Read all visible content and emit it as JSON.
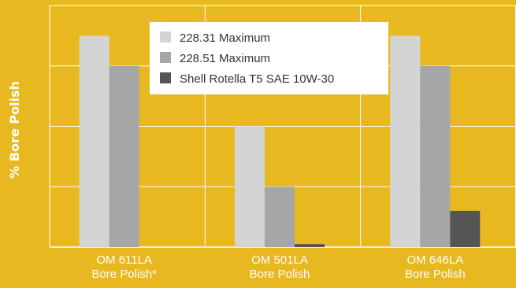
{
  "chart_data": {
    "type": "bar",
    "title": "",
    "ylabel": "% Bore Polish",
    "xlabel": "",
    "categories": [
      [
        "OM 611LA",
        "Bore Polish*"
      ],
      [
        "OM 501LA",
        "Bore Polish"
      ],
      [
        "OM 646LA",
        "Bore Polish"
      ]
    ],
    "series": [
      {
        "name": "228.31 Maximum",
        "color": "#D4D4D4",
        "values": [
          3.5,
          2.0,
          3.5
        ]
      },
      {
        "name": "228.51 Maximum",
        "color": "#A6A6A7",
        "values": [
          3.0,
          1.0,
          3.0
        ]
      },
      {
        "name": "Shell Rotella T5 SAE 10W-30",
        "color": "#555556",
        "values": [
          0.0,
          0.05,
          0.6
        ]
      }
    ],
    "ylim": [
      0,
      4
    ],
    "grid": true,
    "legend": "top-center",
    "colors": {
      "background": "#E8B820",
      "grid": "#ffffff",
      "legend_bg": "#ffffff"
    }
  }
}
